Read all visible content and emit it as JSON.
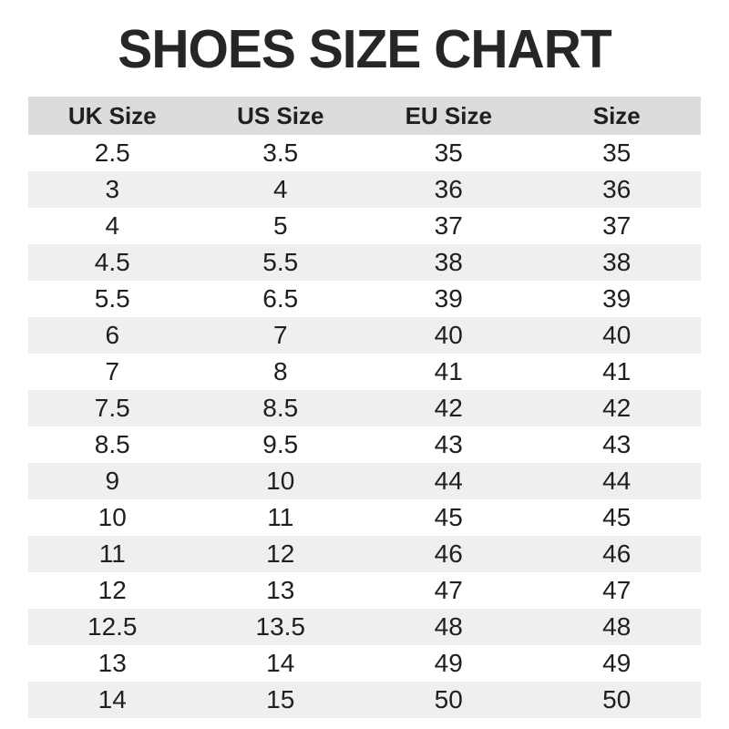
{
  "page": {
    "title": "SHOES SIZE CHART"
  },
  "colors": {
    "title_text": "#262626",
    "header_bg": "#dcdcdc",
    "row_bg": "#ffffff",
    "row_alt_bg": "#efefef",
    "cell_text": "#1f1f1f",
    "page_bg": "#ffffff"
  },
  "chart_data": {
    "type": "table",
    "title": "SHOES SIZE CHART",
    "columns": [
      "UK Size",
      "US Size",
      "EU Size",
      "Size"
    ],
    "rows": [
      [
        "2.5",
        "3.5",
        "35",
        "35"
      ],
      [
        "3",
        "4",
        "36",
        "36"
      ],
      [
        "4",
        "5",
        "37",
        "37"
      ],
      [
        "4.5",
        "5.5",
        "38",
        "38"
      ],
      [
        "5.5",
        "6.5",
        "39",
        "39"
      ],
      [
        "6",
        "7",
        "40",
        "40"
      ],
      [
        "7",
        "8",
        "41",
        "41"
      ],
      [
        "7.5",
        "8.5",
        "42",
        "42"
      ],
      [
        "8.5",
        "9.5",
        "43",
        "43"
      ],
      [
        "9",
        "10",
        "44",
        "44"
      ],
      [
        "10",
        "11",
        "45",
        "45"
      ],
      [
        "11",
        "12",
        "46",
        "46"
      ],
      [
        "12",
        "13",
        "47",
        "47"
      ],
      [
        "12.5",
        "13.5",
        "48",
        "48"
      ],
      [
        "13",
        "14",
        "49",
        "49"
      ],
      [
        "14",
        "15",
        "50",
        "50"
      ]
    ],
    "layout": {
      "striped": true,
      "grid": false,
      "header_row": true,
      "column_count": 4,
      "row_count": 16
    }
  }
}
